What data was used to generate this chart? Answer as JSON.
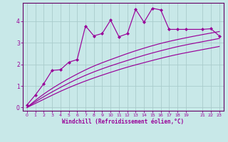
{
  "xlabel": "Windchill (Refroidissement éolien,°C)",
  "bg_color": "#c8e8e8",
  "line_color": "#990099",
  "grid_color": "#aacccc",
  "axis_color": "#660066",
  "xlim": [
    -0.5,
    23.5
  ],
  "ylim": [
    -0.15,
    4.85
  ],
  "xticks": [
    0,
    1,
    2,
    3,
    4,
    5,
    6,
    7,
    8,
    9,
    10,
    11,
    12,
    13,
    14,
    15,
    16,
    17,
    18,
    19,
    21,
    22,
    23
  ],
  "yticks": [
    0,
    1,
    2,
    3,
    4
  ],
  "data_line": {
    "x": [
      0,
      1,
      2,
      3,
      4,
      5,
      6,
      7,
      8,
      9,
      10,
      11,
      12,
      13,
      14,
      15,
      16,
      17,
      18,
      19,
      21,
      22,
      23
    ],
    "y": [
      0.12,
      0.58,
      1.1,
      1.72,
      1.75,
      2.1,
      2.22,
      3.78,
      3.32,
      3.43,
      4.05,
      3.28,
      3.42,
      4.55,
      3.95,
      4.6,
      4.52,
      3.62,
      3.62,
      3.62,
      3.62,
      3.65,
      3.32
    ]
  },
  "smooth_upper": {
    "x": [
      0,
      2,
      4,
      6,
      8,
      10,
      12,
      14,
      16,
      18,
      21,
      23
    ],
    "y": [
      0.0,
      0.62,
      1.12,
      1.55,
      1.92,
      2.22,
      2.5,
      2.75,
      2.97,
      3.15,
      3.38,
      3.52
    ]
  },
  "smooth_mid": {
    "x": [
      0,
      2,
      4,
      6,
      8,
      10,
      12,
      14,
      16,
      18,
      21,
      23
    ],
    "y": [
      0.0,
      0.5,
      0.93,
      1.32,
      1.65,
      1.93,
      2.18,
      2.42,
      2.63,
      2.82,
      3.05,
      3.2
    ]
  },
  "smooth_lower": {
    "x": [
      0,
      2,
      4,
      6,
      8,
      10,
      12,
      14,
      16,
      18,
      21,
      23
    ],
    "y": [
      0.0,
      0.38,
      0.75,
      1.08,
      1.37,
      1.63,
      1.87,
      2.08,
      2.28,
      2.46,
      2.68,
      2.83
    ]
  }
}
